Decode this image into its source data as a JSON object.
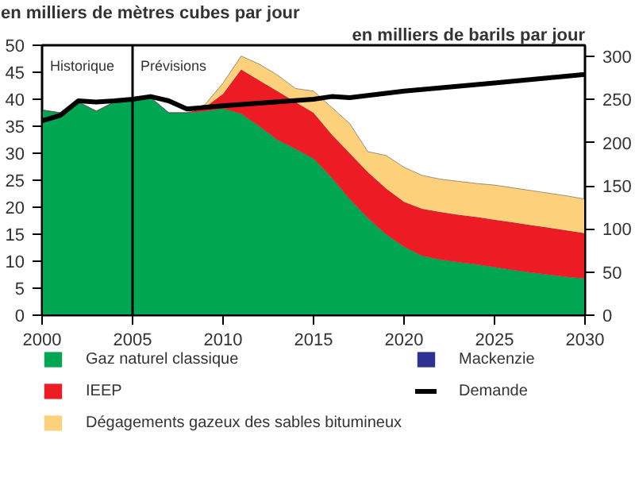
{
  "chart_data": {
    "type": "area",
    "stacked": true,
    "ylabel": "en milliers de mètres cubes par jour",
    "y2label": "en milliers de barils par jour",
    "x": [
      2000,
      2001,
      2002,
      2003,
      2004,
      2005,
      2006,
      2007,
      2008,
      2009,
      2010,
      2011,
      2012,
      2013,
      2014,
      2015,
      2016,
      2017,
      2018,
      2019,
      2020,
      2021,
      2022,
      2023,
      2024,
      2025,
      2026,
      2027,
      2028,
      2029,
      2030
    ],
    "series": [
      {
        "name": "Gaz naturel classique",
        "color": "#00a651",
        "values": [
          38,
          37.5,
          39.5,
          37.8,
          39.5,
          40,
          40.3,
          37.5,
          37.5,
          37.8,
          38.3,
          37.3,
          35,
          32.5,
          30.8,
          29,
          25.5,
          21.5,
          18,
          15,
          12.7,
          11,
          10.3,
          9.8,
          9.4,
          8.9,
          8.4,
          7.9,
          7.5,
          7.1,
          6.8
        ]
      },
      {
        "name": "IEEP",
        "color": "#ed1c24",
        "values": [
          0,
          0,
          0,
          0,
          0,
          0,
          0,
          0,
          0,
          0.7,
          2.7,
          8.2,
          8.5,
          9,
          8.7,
          8.5,
          8,
          8.5,
          8.5,
          8.5,
          8.3,
          8.7,
          8.8,
          8.8,
          8.8,
          8.8,
          8.8,
          8.8,
          8.7,
          8.6,
          8.4
        ]
      },
      {
        "name": "Dégagements gazeux des sables bitumineux",
        "color": "#fdd17c",
        "values": [
          0,
          0,
          0,
          0,
          0,
          0,
          0,
          0,
          0,
          0.5,
          2,
          2.5,
          3,
          3,
          2.5,
          4,
          5,
          5.5,
          3.8,
          6.1,
          6.4,
          6.2,
          6.1,
          6.2,
          6.2,
          6.4,
          6.4,
          6.4,
          6.4,
          6.4,
          6.3
        ]
      },
      {
        "name": "Mackenzie",
        "color": "#2e3192",
        "values": [
          null,
          null,
          null,
          null,
          null,
          null,
          null,
          null,
          null,
          null,
          null,
          null,
          null,
          null,
          null,
          null,
          null,
          null,
          null,
          null,
          null,
          null,
          null,
          null,
          null,
          null,
          null,
          null,
          null,
          null,
          null
        ]
      },
      {
        "name": "Demande",
        "color": "#000000",
        "type": "line",
        "x": [
          2000,
          2001,
          2002,
          2003,
          2004,
          2005,
          2006,
          2007,
          2008,
          2010,
          2015,
          2016,
          2017,
          2020,
          2025,
          2030
        ],
        "values": [
          36,
          37,
          39.7,
          39.5,
          39.7,
          40,
          40.5,
          39.7,
          38.2,
          38.8,
          40,
          40.5,
          40.3,
          41.5,
          43,
          44.6
        ]
      }
    ],
    "xlim": [
      2000,
      2030
    ],
    "xticks": [
      2000,
      2005,
      2010,
      2015,
      2020,
      2025,
      2030
    ],
    "ylim": [
      0,
      50
    ],
    "yticks": [
      0,
      5,
      10,
      15,
      20,
      25,
      30,
      35,
      40,
      45,
      50
    ],
    "y2lim": [
      0,
      313
    ],
    "y2ticks": [
      0,
      50,
      100,
      150,
      200,
      250,
      300
    ],
    "ref_lines": [
      {
        "axis": "x",
        "value": 2005,
        "label": null,
        "color": "#000000"
      }
    ],
    "annotations": [
      "Historique",
      "Prévisions"
    ],
    "grid": false,
    "legend": "bottom"
  }
}
